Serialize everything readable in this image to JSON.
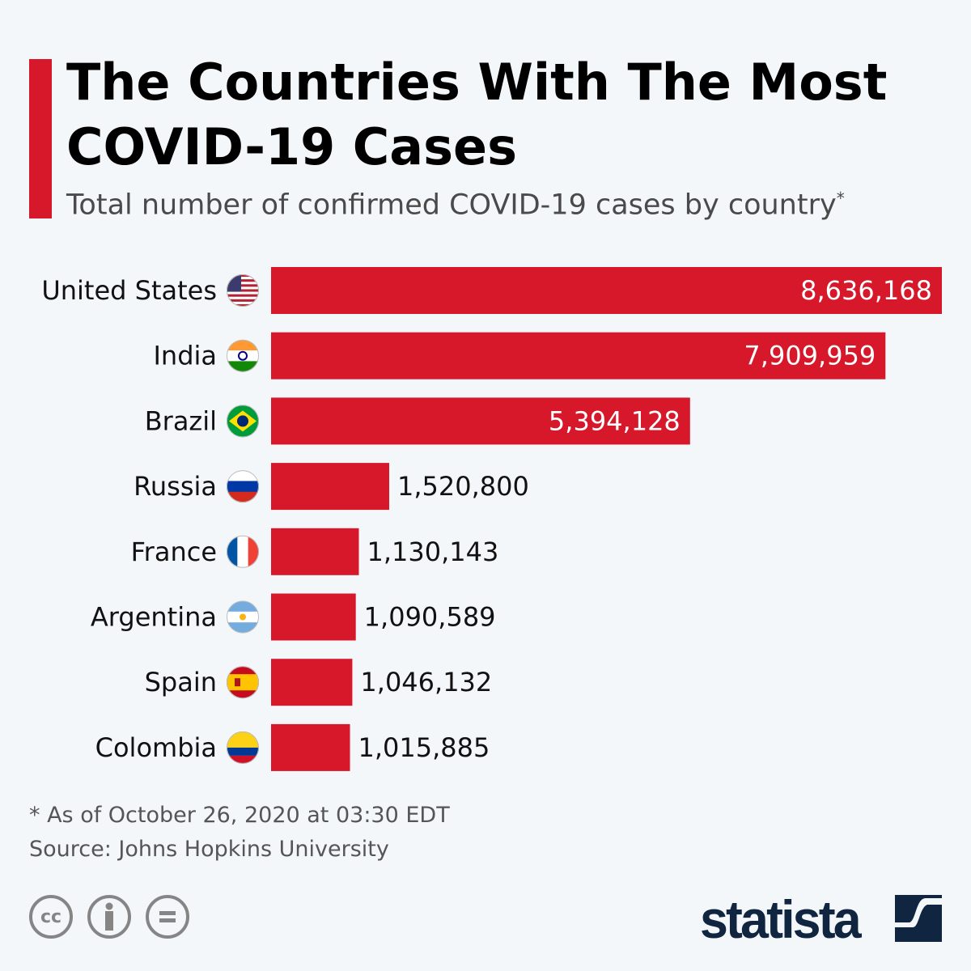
{
  "title": "The Countries With The Most COVID-19 Cases",
  "subtitle": "Total number of confirmed COVID-19 cases by country",
  "subtitle_mark": "*",
  "footnote": "* As of October 26, 2020 at 03:30 EDT",
  "source": "Source: Johns Hopkins University",
  "brand": "statista",
  "license_icons": [
    "cc-icon",
    "attribution-icon",
    "no-derivatives-icon"
  ],
  "colors": {
    "bar": "#d7172a",
    "accent": "#d7172a",
    "brand": "#0f2540"
  },
  "chart_data": {
    "type": "bar",
    "orientation": "horizontal",
    "title": "The Countries With The Most COVID-19 Cases",
    "xlabel": "",
    "ylabel": "",
    "categories": [
      "United States",
      "India",
      "Brazil",
      "Russia",
      "France",
      "Argentina",
      "Spain",
      "Colombia"
    ],
    "flags": [
      "us",
      "in",
      "br",
      "ru",
      "fr",
      "ar",
      "es",
      "co"
    ],
    "values": [
      8636168,
      7909959,
      5394128,
      1520800,
      1130143,
      1090589,
      1046132,
      1015885
    ],
    "value_labels": [
      "8,636,168",
      "7,909,959",
      "5,394,128",
      "1,520,800",
      "1,130,143",
      "1,090,589",
      "1,046,132",
      "1,015,885"
    ],
    "xlim": [
      0,
      8636168
    ],
    "grid": false
  }
}
